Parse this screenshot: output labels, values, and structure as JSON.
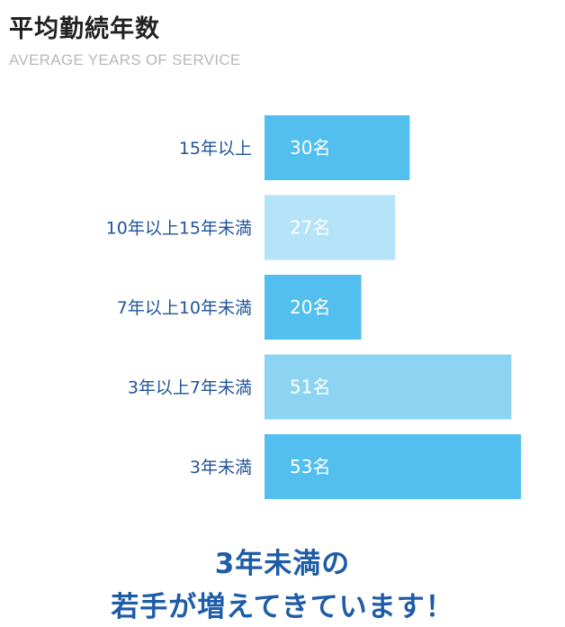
{
  "header": {
    "title": "平均勤続年数",
    "subtitle": "AVERAGE YEARS OF SERVICE"
  },
  "chart_data": {
    "type": "bar",
    "orientation": "horizontal",
    "title": "平均勤続年数",
    "subtitle": "AVERAGE YEARS OF SERVICE",
    "categories": [
      "15年以上",
      "10年以上15年未満",
      "7年以上10年未満",
      "3年以上7年未満",
      "3年未満"
    ],
    "values": [
      30,
      27,
      20,
      51,
      53
    ],
    "data_labels": [
      "30名",
      "27名",
      "20名",
      "51名",
      "53名"
    ],
    "unit": "名",
    "colors": [
      "#53bfee",
      "#b5e3f7",
      "#53bfee",
      "#8dd4f3",
      "#53bfee"
    ],
    "label_color": "#22559a",
    "grid": false,
    "legend": "none"
  },
  "footer": {
    "line1": "3年未満の",
    "line2": "若手が増えてきています！"
  }
}
